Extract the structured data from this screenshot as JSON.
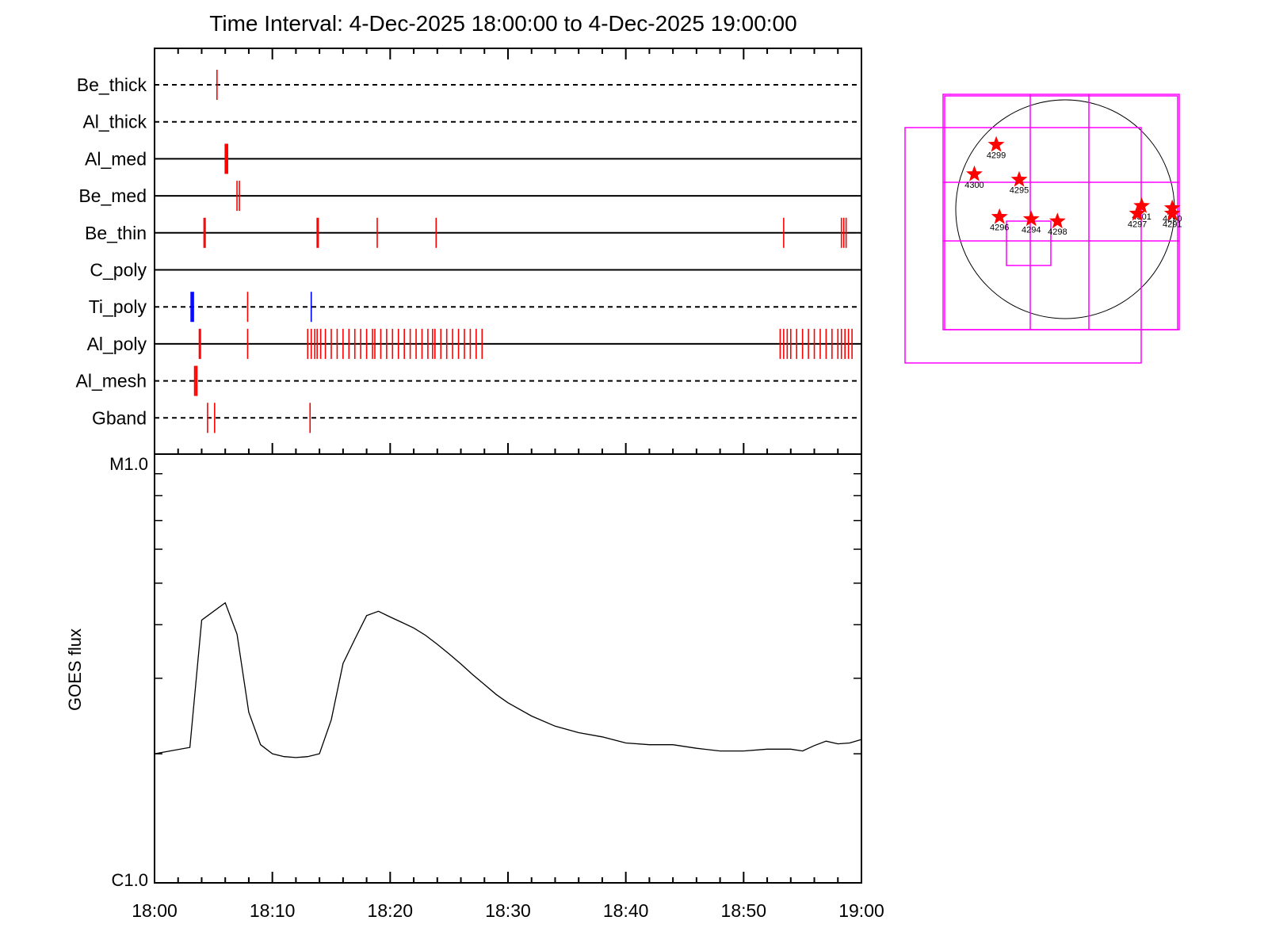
{
  "title": "Time Interval:  4-Dec-2025 18:00:00 to  4-Dec-2025 19:00:00",
  "colors": {
    "axis": "#000000",
    "event": "#ff0000",
    "event_alt": "#0000ff",
    "box": "#ff00ff",
    "flux": "#000000"
  },
  "chart_data": [
    {
      "type": "timeline",
      "xlim": [
        0,
        60
      ],
      "rows": [
        {
          "name": "Be_thick",
          "style": "dashed",
          "events": [
            5.3
          ],
          "alt_events": []
        },
        {
          "name": "Al_thick",
          "style": "dashed",
          "events": [],
          "alt_events": []
        },
        {
          "name": "Al_med",
          "style": "solid",
          "events": [
            6.0,
            6.1,
            6.2
          ],
          "alt_events": []
        },
        {
          "name": "Be_med",
          "style": "solid",
          "events": [
            7.0,
            7.2
          ],
          "alt_events": []
        },
        {
          "name": "Be_thin",
          "style": "solid",
          "events": [
            4.2,
            4.3,
            13.8,
            13.9,
            18.9,
            23.9,
            53.4,
            58.3,
            58.5,
            58.7
          ],
          "alt_events": []
        },
        {
          "name": "C_poly",
          "style": "solid",
          "events": [],
          "alt_events": []
        },
        {
          "name": "Ti_poly",
          "style": "dashed",
          "events": [
            7.9
          ],
          "alt_events": [
            3.1,
            3.2,
            3.3,
            13.3
          ]
        },
        {
          "name": "Al_poly",
          "style": "solid",
          "events": [
            3.8,
            3.9,
            7.9,
            13.0,
            13.3,
            13.6,
            13.8,
            14.1,
            14.5,
            15.0,
            15.5,
            16.0,
            16.5,
            17.0,
            17.5,
            18.0,
            18.5,
            18.7,
            19.2,
            19.7,
            20.2,
            20.7,
            21.2,
            21.7,
            22.2,
            22.7,
            23.2,
            23.6,
            23.8,
            24.3,
            24.8,
            25.3,
            25.8,
            26.3,
            26.8,
            27.3,
            27.8,
            53.1,
            53.4,
            53.7,
            54.0,
            54.5,
            55.0,
            55.5,
            56.0,
            56.5,
            57.0,
            57.5,
            58.0,
            58.3,
            58.6,
            58.9,
            59.2
          ],
          "alt_events": []
        },
        {
          "name": "Al_mesh",
          "style": "dashed",
          "events": [
            3.4,
            3.5,
            3.6
          ],
          "alt_events": []
        },
        {
          "name": "Gband",
          "style": "dashed",
          "events": [
            4.5,
            5.1,
            13.2
          ],
          "alt_events": []
        }
      ]
    },
    {
      "type": "line",
      "ylabel": "GOES flux",
      "y_scale": "log",
      "ylim": [
        1e-06,
        1e-05
      ],
      "ytick_labels": [
        "C1.0",
        "M1.0"
      ],
      "xlim": [
        0,
        60
      ],
      "xtick_labels": [
        "18:00",
        "18:10",
        "18:20",
        "18:30",
        "18:40",
        "18:50",
        "19:00"
      ],
      "x": [
        0,
        3,
        4,
        6,
        7,
        8,
        9,
        10,
        11,
        12,
        13,
        14,
        15,
        16,
        17,
        18,
        19,
        20,
        21,
        22,
        23,
        24,
        25,
        26,
        27,
        28,
        29,
        30,
        32,
        34,
        36,
        38,
        40,
        42,
        44,
        46,
        48,
        50,
        52,
        54,
        55,
        56,
        57,
        58,
        59,
        60
      ],
      "y": [
        2e-06,
        2.07e-06,
        4.1e-06,
        4.5e-06,
        3.8e-06,
        2.5e-06,
        2.1e-06,
        2e-06,
        1.97e-06,
        1.96e-06,
        1.97e-06,
        2e-06,
        2.4e-06,
        3.25e-06,
        3.7e-06,
        4.2e-06,
        4.3e-06,
        4.17e-06,
        4.05e-06,
        3.93e-06,
        3.78e-06,
        3.6e-06,
        3.42e-06,
        3.24e-06,
        3.06e-06,
        2.9e-06,
        2.75e-06,
        2.63e-06,
        2.45e-06,
        2.32e-06,
        2.24e-06,
        2.19e-06,
        2.12e-06,
        2.1e-06,
        2.1e-06,
        2.06e-06,
        2.03e-06,
        2.03e-06,
        2.05e-06,
        2.05e-06,
        2.03e-06,
        2.09e-06,
        2.14e-06,
        2.11e-06,
        2.12e-06,
        2.16e-06
      ]
    },
    {
      "type": "solar_disk",
      "regions": [
        {
          "id": "4299",
          "x": -0.63,
          "y": 0.59
        },
        {
          "id": "4300",
          "x": -0.83,
          "y": 0.32
        },
        {
          "id": "4295",
          "x": -0.42,
          "y": 0.27
        },
        {
          "id": "4296",
          "x": -0.6,
          "y": -0.07
        },
        {
          "id": "4294",
          "x": -0.31,
          "y": -0.09
        },
        {
          "id": "4298",
          "x": -0.07,
          "y": -0.11
        },
        {
          "id": "4301",
          "x": 0.7,
          "y": 0.03
        },
        {
          "id": "4297",
          "x": 0.66,
          "y": -0.04
        },
        {
          "id": "4290",
          "x": 0.98,
          "y": 0.01
        },
        {
          "id": "4291",
          "x": 0.98,
          "y": -0.04
        }
      ]
    }
  ]
}
